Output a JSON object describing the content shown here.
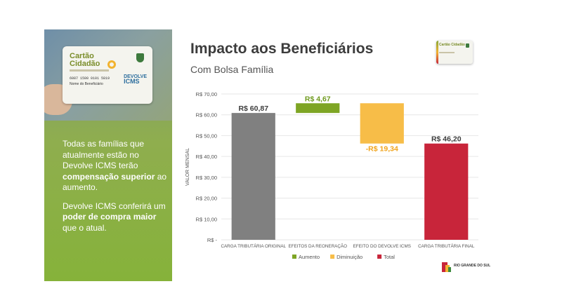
{
  "slide": {
    "title": "Impacto aos Beneficiários",
    "subtitle": "Com Bolsa Família"
  },
  "left_panel": {
    "card": {
      "title": "Cartão Cidadão",
      "number": "6087 1500 0101 5819",
      "holder": "Nome do Beneficiário",
      "program_top": "DEVOLVE",
      "program_bottom": "ICMS"
    },
    "paragraph1": {
      "before": "Todas as famílias que atualmente estão no Devolve ICMS terão ",
      "bold": "compensação superior",
      "after": " ao aumento."
    },
    "paragraph2": {
      "before": "Devolve ICMS conferirá um ",
      "bold": "poder de compra maior",
      "after": " que o atual."
    }
  },
  "mini_card": {
    "title": "Cartão Cidadão"
  },
  "footer": {
    "logo_text": "RIO GRANDE DO SUL"
  },
  "colors": {
    "total_original": "#808080",
    "aumento": "#7ea524",
    "diminuicao": "#f7bd48",
    "total_final": "#c8253a",
    "grid": "#e6e6e6",
    "axis_text": "#555555"
  },
  "chart_data": {
    "type": "bar",
    "subtype": "waterfall",
    "ylabel": "VALOR MENSAL",
    "ylim": [
      0,
      70
    ],
    "yticks": [
      0,
      10,
      20,
      30,
      40,
      50,
      60,
      70
    ],
    "ytick_labels": [
      "R$ -",
      "R$ 10,00",
      "R$ 20,00",
      "R$ 30,00",
      "R$ 40,00",
      "R$ 50,00",
      "R$ 60,00",
      "R$ 70,00"
    ],
    "categories": [
      "CARGA TRIBUTÁRIA ORIGINAL",
      "EFEITOS DA REONERAÇÃO",
      "EFEITO DO DEVOLVE ICMS",
      "CARGA TRIBUTÁRIA FINAL"
    ],
    "bars": [
      {
        "kind": "total",
        "start": 0,
        "end": 60.87,
        "label": "R$ 60,87"
      },
      {
        "kind": "aumento",
        "start": 60.87,
        "end": 65.54,
        "label": "R$ 4,67"
      },
      {
        "kind": "diminuicao",
        "start": 65.54,
        "end": 46.2,
        "label": "-R$ 19,34"
      },
      {
        "kind": "total",
        "start": 0,
        "end": 46.2,
        "label": "R$ 46,20"
      }
    ],
    "legend": [
      {
        "name": "Aumento",
        "color": "#7ea524"
      },
      {
        "name": "Diminuição",
        "color": "#f7bd48"
      },
      {
        "name": "Total",
        "color": "#c8253a"
      }
    ],
    "legend_position": "bottom",
    "grid": true
  }
}
